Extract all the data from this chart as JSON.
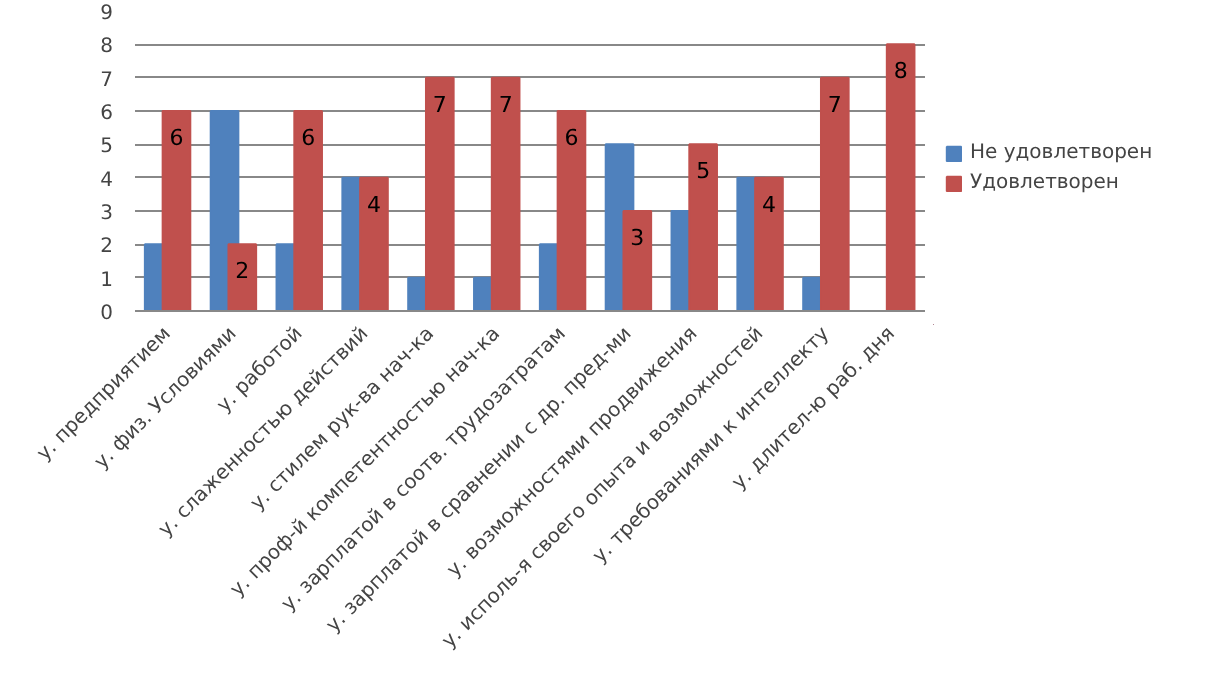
{
  "chart_data": {
    "type": "bar",
    "categories": [
      "у. предприятием",
      "у. физ. Условиями",
      "у. работой",
      "у. слаженностью действий",
      "у. стилем рук-ва нач-ка",
      "у. проф-й компетентностью нач-ка",
      "у. зарплатой в соотв. трудозатратам",
      "у. зарплатой в сравнении с др. пред-ми",
      "у. возможностями продвижения",
      "у. исполь-я своего опыта и возможностей",
      "у. требованиями к интеллекту",
      "у. длител-ю раб. дня"
    ],
    "series": [
      {
        "name": "Не удовлетворен",
        "color": "#4f81bd",
        "values": [
          2,
          6,
          2,
          4,
          1,
          1,
          2,
          5,
          3,
          4,
          1,
          null
        ]
      },
      {
        "name": "Удовлетворен",
        "color": "#c0504d",
        "values": [
          6,
          2,
          6,
          4,
          7,
          7,
          6,
          3,
          5,
          4,
          7,
          8
        ],
        "value_labels": [
          "6",
          "2",
          "6",
          "4",
          "7",
          "7",
          "6",
          "3",
          "5",
          "4",
          "7",
          "8"
        ]
      }
    ],
    "ylim": [
      0,
      9
    ],
    "yticks": [
      0,
      1,
      2,
      3,
      4,
      5,
      6,
      7,
      8,
      9
    ],
    "grid": "y",
    "legend": "right"
  }
}
